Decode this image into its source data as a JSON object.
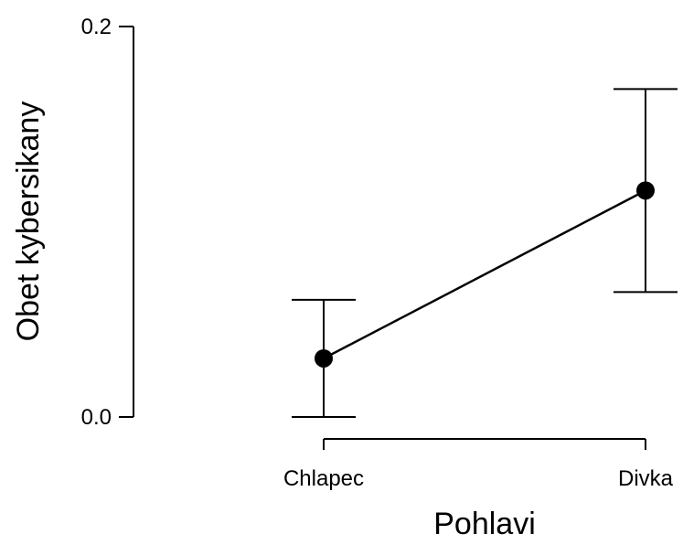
{
  "chart_data": {
    "type": "line",
    "title": "",
    "xlabel": "Pohlavi",
    "ylabel": "Obet kybersikany",
    "categories": [
      "Chlapec",
      "Divka"
    ],
    "ylim": [
      0,
      0.2
    ],
    "yticks": [
      "0.0",
      "0.2"
    ],
    "series": [
      {
        "values": [
          0.03,
          0.116
        ],
        "error_lower": [
          0.0,
          0.064
        ],
        "error_upper": [
          0.06,
          0.168
        ]
      }
    ],
    "grid": false,
    "legend": "none",
    "colors": {
      "line": "#000000",
      "marker": "#000000",
      "axis": "#000000"
    }
  }
}
